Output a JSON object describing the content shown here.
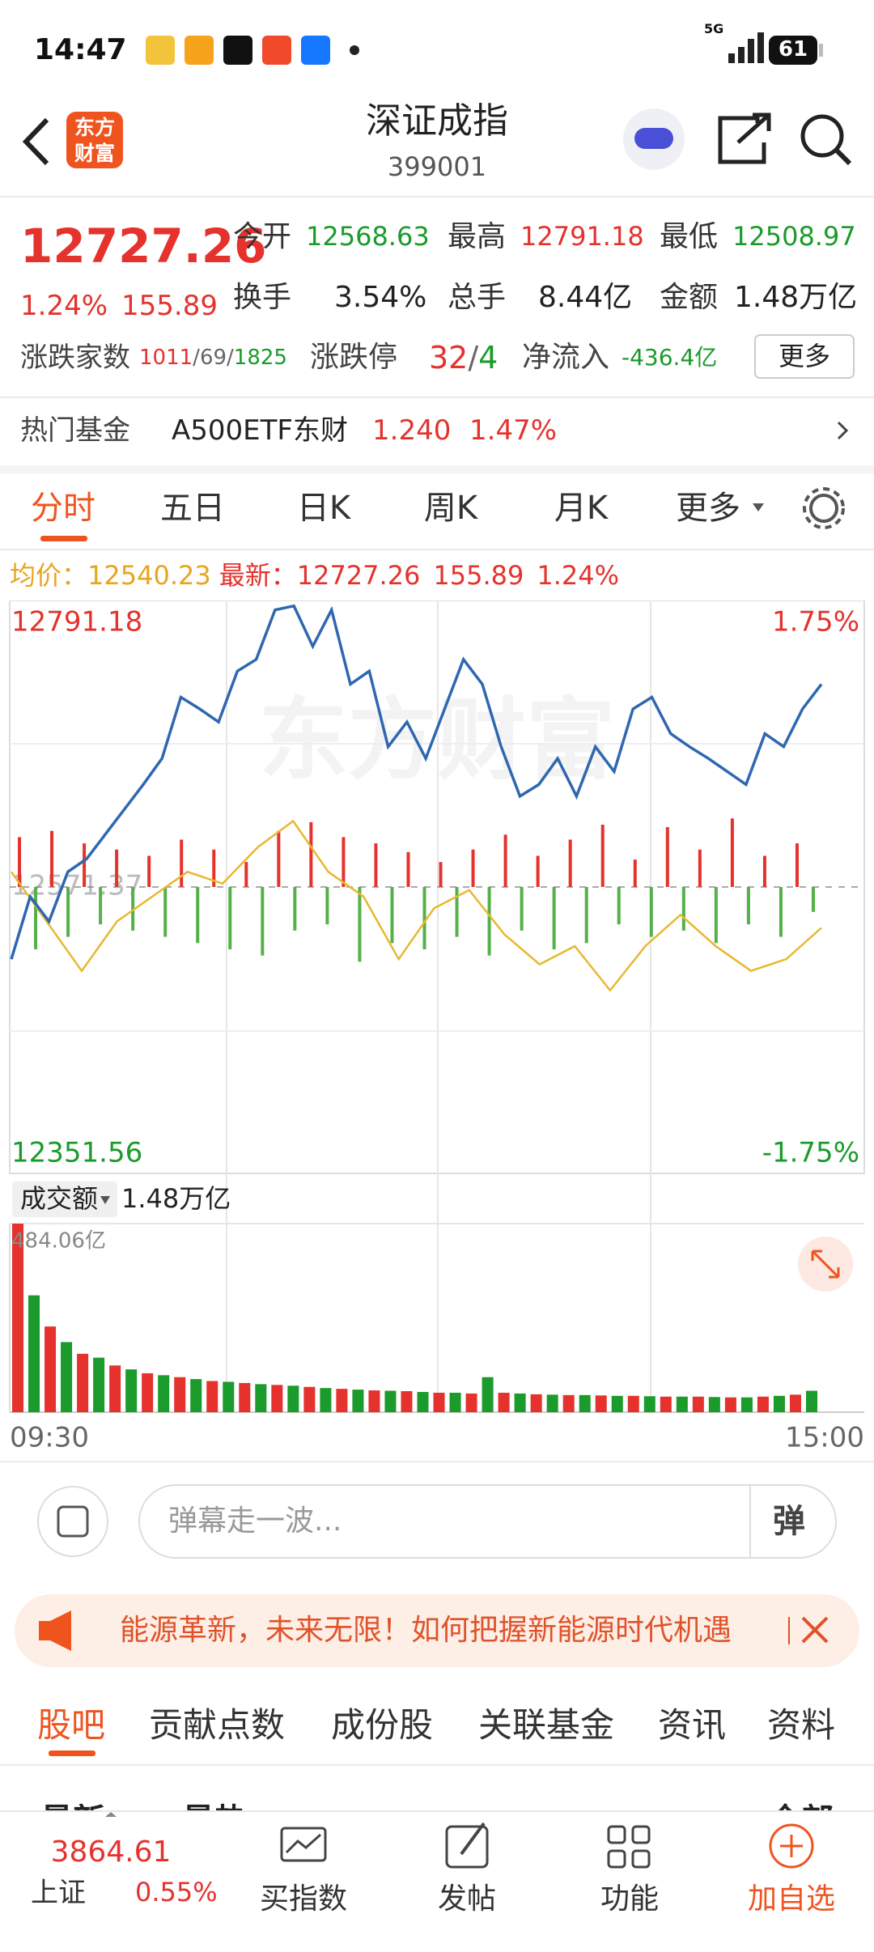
{
  "status_bar": {
    "time": "14:47",
    "network": "5G",
    "battery": "61"
  },
  "header": {
    "logo": [
      "东方",
      "财富"
    ],
    "title": "深证成指",
    "code": "399001"
  },
  "quote": {
    "price": "12727.26",
    "change_pct": "1.24%",
    "change": "155.89",
    "stats": [
      {
        "label": "今开",
        "value": "12568.63"
      },
      {
        "label": "最高",
        "value": "12791.18"
      },
      {
        "label": "最低",
        "value": "12508.97"
      },
      {
        "label": "换手",
        "value": "3.54%"
      },
      {
        "label": "总手",
        "value": "8.44亿"
      },
      {
        "label": "金额",
        "value": "1.48万亿"
      }
    ],
    "breadth": {
      "label": "涨跌家数",
      "up": "1011",
      "flat": "69",
      "down": "1825",
      "separator": "/"
    },
    "limit": {
      "label": "涨跌停",
      "up": "32",
      "down": "4",
      "separator": "/"
    },
    "net_flow": {
      "label": "净流入",
      "value": "-436.4亿"
    },
    "more": "更多"
  },
  "hot_fund": {
    "label": "热门基金",
    "name": "A500ETF东财",
    "price": "1.240",
    "pct": "1.47%"
  },
  "tabs": [
    "分时",
    "五日",
    "日K",
    "周K",
    "月K",
    "更多"
  ],
  "info_line": {
    "avg_label": "均价：",
    "avg": "12540.23",
    "latest_label": "最新：",
    "latest": "12727.26",
    "change": "155.89",
    "pct": "1.24%"
  },
  "chart": {
    "watermark": "东方财富",
    "ylim": [
      12351.56,
      12791.18
    ],
    "yticks": [
      12351.56,
      12571.37,
      12791.18
    ],
    "y2lim": [
      -1.75,
      1.75
    ],
    "y2ticks": [
      {
        "value": -1.75,
        "label": "-1.75%"
      },
      {
        "value": 1.75,
        "label": "1.75%"
      }
    ],
    "price": [
      12516,
      12564,
      12545,
      12583,
      12593,
      12612,
      12631,
      12650,
      12670,
      12717,
      12708,
      12698,
      12737,
      12746,
      12784,
      12787,
      12756,
      12784,
      12727,
      12737,
      12679,
      12698,
      12670,
      12708,
      12746,
      12727,
      12679,
      12641,
      12650,
      12670,
      12641,
      12679,
      12660,
      12708,
      12717,
      12689,
      12679,
      12670,
      12660,
      12650,
      12689,
      12679,
      12708,
      12727
    ],
    "avg_line": [
      12583,
      12545,
      12507,
      12545,
      12564,
      12583,
      12574,
      12602,
      12622,
      12583,
      12564,
      12516,
      12555,
      12569,
      12535,
      12512,
      12526,
      12492,
      12526,
      12550,
      12526,
      12507,
      12516,
      12540
    ],
    "flow_bars": [
      40,
      -50,
      45,
      -40,
      35,
      -30,
      30,
      -35,
      25,
      -40,
      38,
      -45,
      30,
      -50,
      20,
      -55,
      45,
      -35,
      52,
      -30,
      40,
      -60,
      35,
      -45,
      28,
      -50,
      20,
      -40,
      30,
      -55,
      42,
      -35,
      25,
      -50,
      38,
      -45,
      50,
      -30,
      22,
      -40,
      48,
      -35,
      30,
      -45,
      55,
      -30,
      25,
      -40,
      35,
      -20
    ]
  },
  "volume": {
    "label": "成交额",
    "total": "1.48万亿",
    "max_label": "484.06亿",
    "ylim": [
      0,
      484.06
    ],
    "values": [
      484,
      300,
      220,
      180,
      150,
      140,
      120,
      110,
      100,
      95,
      90,
      85,
      80,
      78,
      75,
      72,
      70,
      68,
      65,
      62,
      60,
      58,
      56,
      55,
      54,
      52,
      50,
      50,
      48,
      90,
      50,
      48,
      46,
      45,
      44,
      44,
      43,
      42,
      42,
      41,
      40,
      40,
      40,
      39,
      38,
      38,
      40,
      42,
      45,
      55
    ]
  },
  "time_axis": [
    "09:30",
    "15:00"
  ],
  "barrage": {
    "placeholder": "弹幕走一波...",
    "button": "弹"
  },
  "banner": {
    "text": "能源革新，未来无限！如何把握新能源时代机遇"
  },
  "section_tabs": [
    "股吧",
    "贡献点数",
    "成份股",
    "关联基金",
    "资讯",
    "资料"
  ],
  "sub_tabs": [
    "最新",
    "最热",
    "全部"
  ],
  "bottom_nav": {
    "index_price": "3864.61",
    "index_name": "上证",
    "index_pct": "0.55%",
    "items": [
      "买指数",
      "发帖",
      "功能",
      "加自选"
    ]
  }
}
